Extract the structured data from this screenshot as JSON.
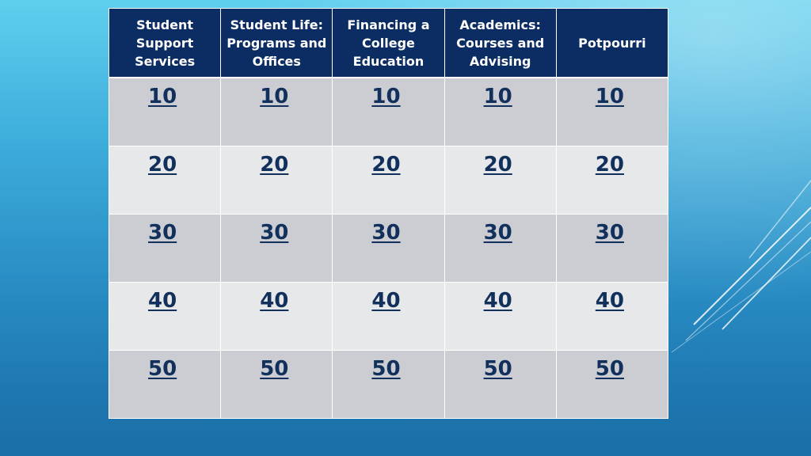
{
  "categories": [
    {
      "label": "Student Support Services"
    },
    {
      "label": "Student Life: Programs and Offices"
    },
    {
      "label": "Financing a College Education"
    },
    {
      "label": "Academics: Courses and Advising"
    },
    {
      "label": "Potpourri"
    }
  ],
  "rows": [
    {
      "cells": [
        "10",
        "10",
        "10",
        "10",
        "10"
      ]
    },
    {
      "cells": [
        "20",
        "20",
        "20",
        "20",
        "20"
      ]
    },
    {
      "cells": [
        "30",
        "30",
        "30",
        "30",
        "30"
      ]
    },
    {
      "cells": [
        "40",
        "40",
        "40",
        "40",
        "40"
      ]
    },
    {
      "cells": [
        "50",
        "50",
        "50",
        "50",
        "50"
      ]
    }
  ],
  "colors": {
    "header_bg": "#0b2d63",
    "cell_odd": "#cbcdd2",
    "cell_even": "#e7e8ea",
    "link_text": "#12305c"
  }
}
